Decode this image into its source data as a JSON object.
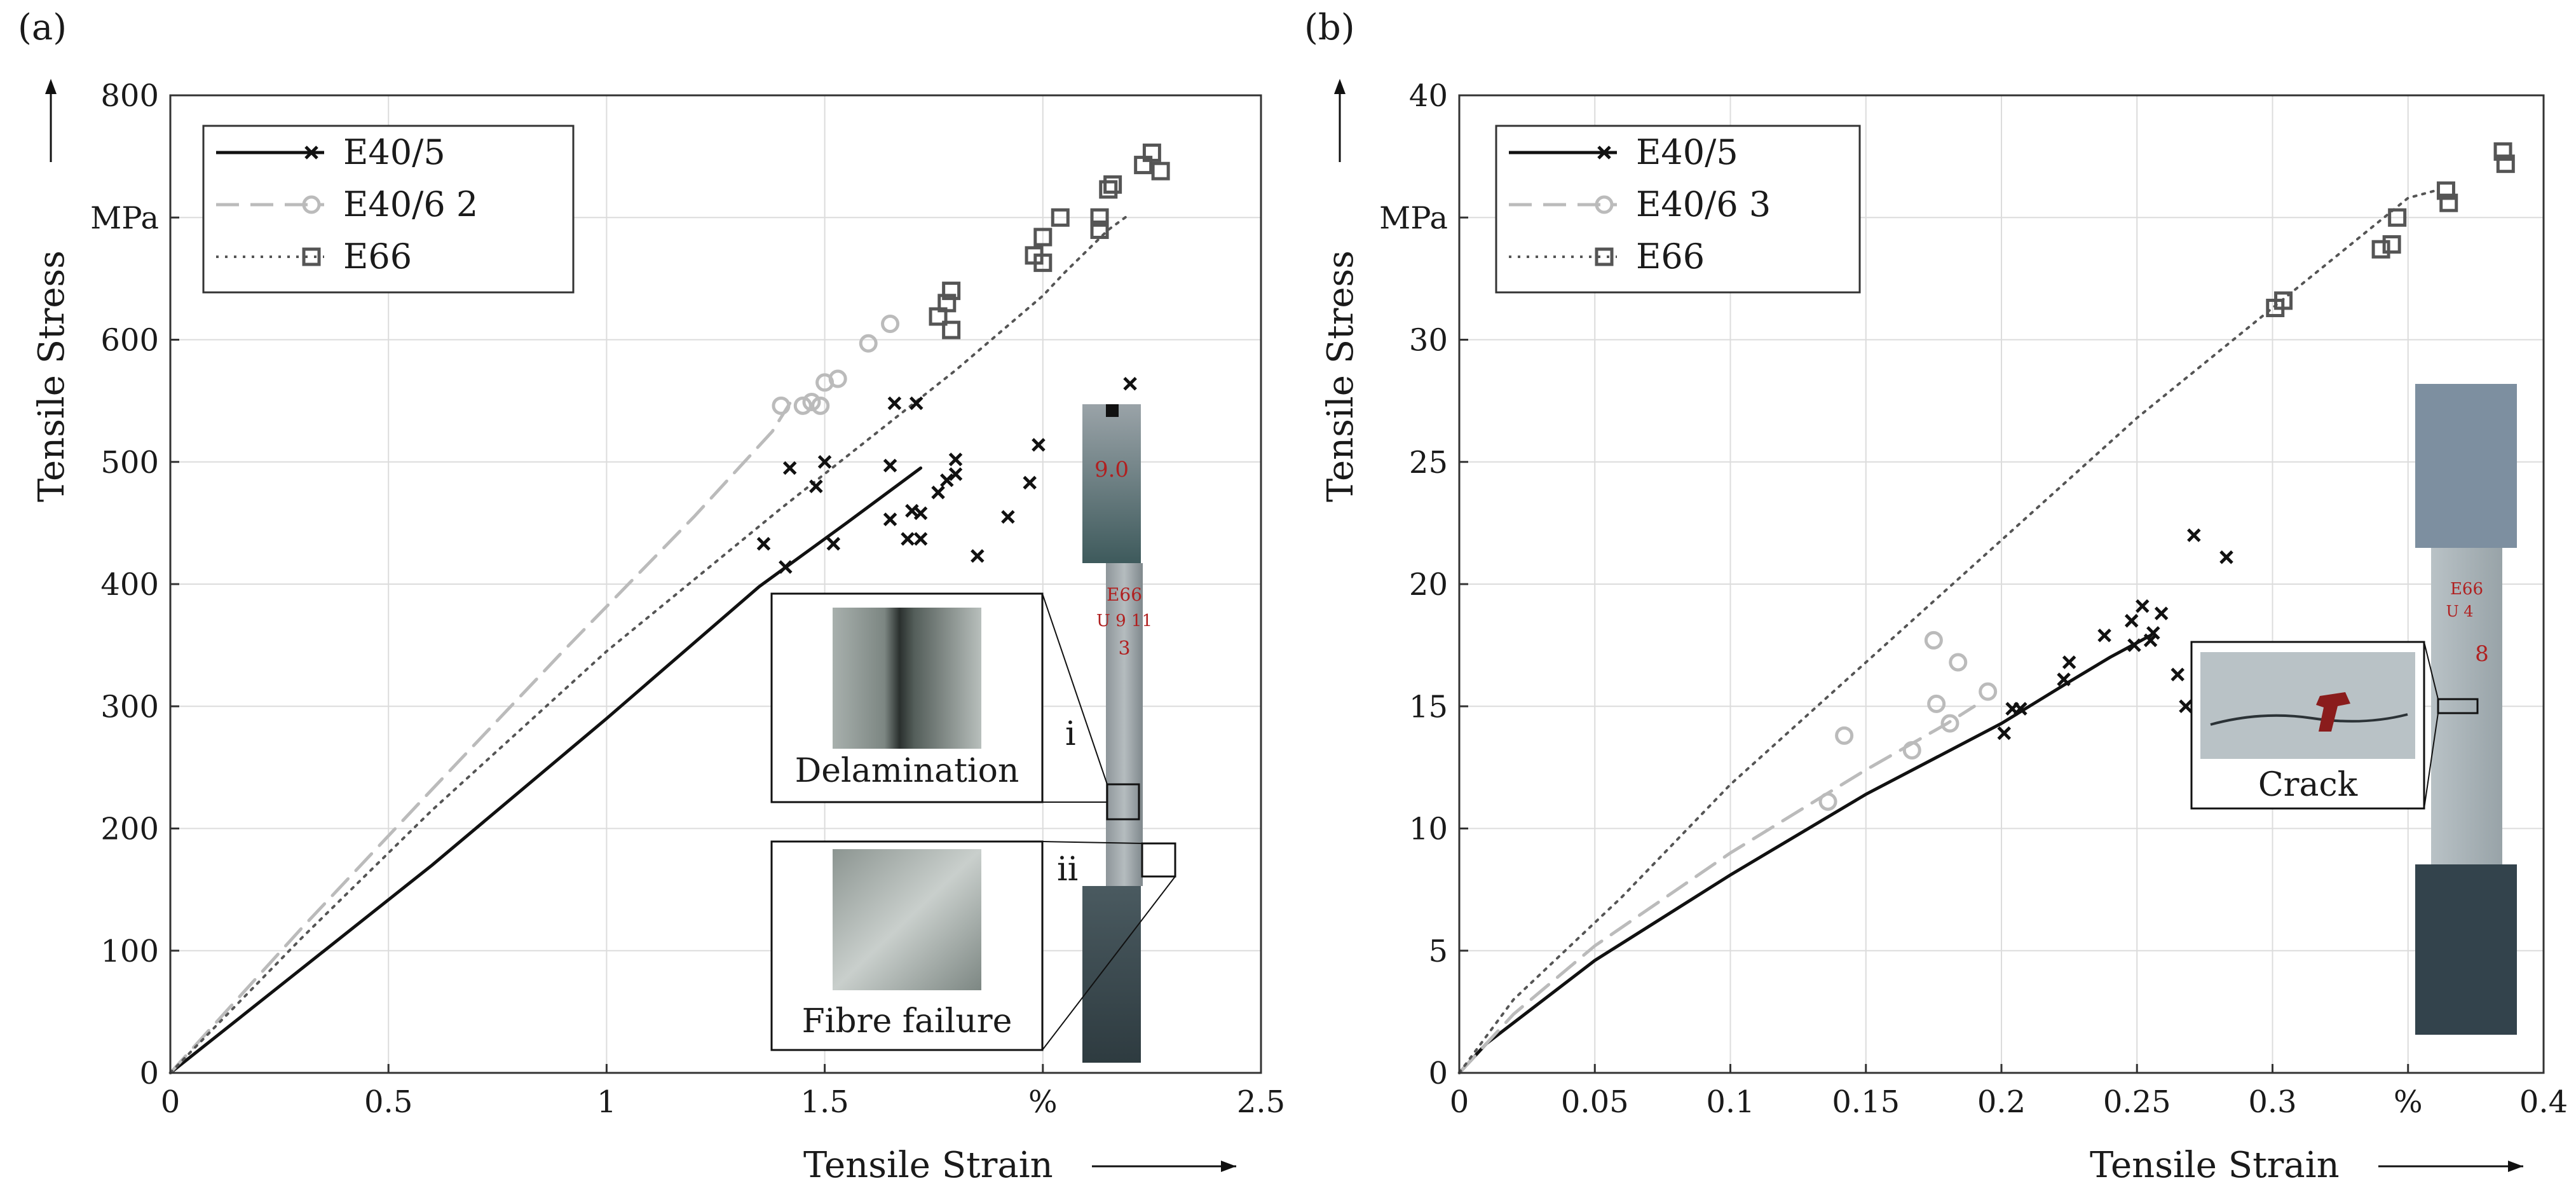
{
  "panels": [
    {
      "id": "a",
      "panel_label": "(a)",
      "inset_labels": {
        "upper": "Delamination",
        "lower": "Fibre failure",
        "marker_i": "i",
        "marker_ii": "ii"
      },
      "specimen_text": [
        "9.0",
        "E66",
        "U 9 11",
        "3"
      ],
      "chart_data": {
        "type": "scatter",
        "title": "",
        "xlabel": "Tensile Strain",
        "ylabel": "Tensile Stress",
        "xunit": "%",
        "yunit": "MPa",
        "xlim": [
          0,
          2.5
        ],
        "ylim": [
          0,
          800
        ],
        "xticks": [
          0,
          0.5,
          1,
          1.5,
          2,
          2.5
        ],
        "xtick_labels": [
          "0",
          "0.5",
          "1",
          "1.5",
          "%",
          "2.5"
        ],
        "yticks": [
          0,
          100,
          200,
          300,
          400,
          500,
          600,
          700,
          800
        ],
        "ytick_labels": [
          "0",
          "100",
          "200",
          "300",
          "400",
          "500",
          "600",
          "MPa",
          "800"
        ],
        "grid": true,
        "legend_position": "top-left",
        "series": [
          {
            "name": "E40/5",
            "style": "solid",
            "marker": "x",
            "color": "#111111",
            "line": [
              [
                0,
                0
              ],
              [
                0.3,
                85
              ],
              [
                0.6,
                170
              ],
              [
                1.0,
                290
              ],
              [
                1.35,
                398
              ],
              [
                1.55,
                450
              ],
              [
                1.72,
                495
              ]
            ],
            "points": [
              [
                1.36,
                433
              ],
              [
                1.41,
                414
              ],
              [
                1.42,
                495
              ],
              [
                1.48,
                480
              ],
              [
                1.5,
                500
              ],
              [
                1.52,
                433
              ],
              [
                1.65,
                453
              ],
              [
                1.65,
                497
              ],
              [
                1.66,
                548
              ],
              [
                1.69,
                437
              ],
              [
                1.7,
                460
              ],
              [
                1.71,
                548
              ],
              [
                1.72,
                437
              ],
              [
                1.72,
                458
              ],
              [
                1.76,
                475
              ],
              [
                1.78,
                485
              ],
              [
                1.8,
                490
              ],
              [
                1.8,
                502
              ],
              [
                1.85,
                423
              ],
              [
                1.92,
                455
              ],
              [
                1.97,
                483
              ],
              [
                1.99,
                514
              ],
              [
                2.2,
                564
              ]
            ]
          },
          {
            "name": "E40/6 2",
            "style": "dashed",
            "marker": "o",
            "color": "#bbbbbb",
            "line": [
              [
                0,
                0
              ],
              [
                0.3,
                118
              ],
              [
                0.6,
                232
              ],
              [
                0.9,
                345
              ],
              [
                1.2,
                455
              ],
              [
                1.38,
                525
              ],
              [
                1.42,
                548
              ]
            ],
            "points": [
              [
                1.4,
                546
              ],
              [
                1.45,
                546
              ],
              [
                1.47,
                549
              ],
              [
                1.49,
                546
              ],
              [
                1.5,
                565
              ],
              [
                1.53,
                568
              ],
              [
                1.6,
                597
              ],
              [
                1.65,
                613
              ]
            ]
          },
          {
            "name": "E66",
            "style": "dotted",
            "marker": "s",
            "color": "#555555",
            "line": [
              [
                0,
                0
              ],
              [
                0.3,
                110
              ],
              [
                0.6,
                215
              ],
              [
                1.0,
                345
              ],
              [
                1.4,
                462
              ],
              [
                1.8,
                575
              ],
              [
                2.0,
                636
              ],
              [
                2.05,
                655
              ],
              [
                2.15,
                690
              ],
              [
                2.2,
                703
              ]
            ],
            "points": [
              [
                1.76,
                619
              ],
              [
                1.78,
                630
              ],
              [
                1.79,
                640
              ],
              [
                1.79,
                608
              ],
              [
                1.98,
                669
              ],
              [
                2.0,
                663
              ],
              [
                2.0,
                684
              ],
              [
                2.04,
                700
              ],
              [
                2.13,
                700
              ],
              [
                2.13,
                690
              ],
              [
                2.15,
                723
              ],
              [
                2.16,
                727
              ],
              [
                2.23,
                743
              ],
              [
                2.25,
                753
              ],
              [
                2.27,
                738
              ]
            ]
          }
        ]
      }
    },
    {
      "id": "b",
      "panel_label": "(b)",
      "inset_labels": {
        "upper": "Crack"
      },
      "specimen_text": [
        "E66",
        "U 4",
        "8"
      ],
      "chart_data": {
        "type": "scatter",
        "title": "",
        "xlabel": "Tensile Strain",
        "ylabel": "Tensile Stress",
        "xunit": "%",
        "yunit": "MPa",
        "xlim": [
          0,
          0.4
        ],
        "ylim": [
          0,
          40
        ],
        "xticks": [
          0,
          0.05,
          0.1,
          0.15,
          0.2,
          0.25,
          0.3,
          0.35,
          0.4
        ],
        "xtick_labels": [
          "0",
          "0.05",
          "0.1",
          "0.15",
          "0.2",
          "0.25",
          "0.3",
          "%",
          "0.4"
        ],
        "yticks": [
          0,
          5,
          10,
          15,
          20,
          25,
          30,
          35,
          40
        ],
        "ytick_labels": [
          "0",
          "5",
          "10",
          "15",
          "20",
          "25",
          "30",
          "MPa",
          "40"
        ],
        "grid": true,
        "legend_position": "top-left",
        "series": [
          {
            "name": "E40/5",
            "style": "solid",
            "marker": "x",
            "color": "#111111",
            "line": [
              [
                0,
                0
              ],
              [
                0.01,
                1.2
              ],
              [
                0.05,
                4.6
              ],
              [
                0.1,
                8.1
              ],
              [
                0.15,
                11.4
              ],
              [
                0.2,
                14.3
              ],
              [
                0.225,
                16
              ],
              [
                0.24,
                17
              ],
              [
                0.25,
                17.6
              ],
              [
                0.255,
                17.9
              ]
            ],
            "points": [
              [
                0.201,
                13.9
              ],
              [
                0.204,
                14.9
              ],
              [
                0.207,
                14.9
              ],
              [
                0.223,
                16.1
              ],
              [
                0.225,
                16.8
              ],
              [
                0.238,
                17.9
              ],
              [
                0.248,
                18.5
              ],
              [
                0.249,
                17.5
              ],
              [
                0.252,
                19.1
              ],
              [
                0.255,
                17.7
              ],
              [
                0.256,
                18
              ],
              [
                0.259,
                18.8
              ],
              [
                0.265,
                16.3
              ],
              [
                0.268,
                15
              ],
              [
                0.271,
                22
              ],
              [
                0.283,
                21.1
              ]
            ]
          },
          {
            "name": "E40/6 3",
            "style": "dashed",
            "marker": "o",
            "color": "#bbbbbb",
            "line": [
              [
                0,
                0
              ],
              [
                0.02,
                2.4
              ],
              [
                0.05,
                5.2
              ],
              [
                0.1,
                9
              ],
              [
                0.15,
                12.4
              ],
              [
                0.18,
                14.3
              ],
              [
                0.19,
                15
              ]
            ],
            "points": [
              [
                0.136,
                11.1
              ],
              [
                0.142,
                13.8
              ],
              [
                0.167,
                13.2
              ],
              [
                0.175,
                17.7
              ],
              [
                0.176,
                15.1
              ],
              [
                0.181,
                14.3
              ],
              [
                0.184,
                16.8
              ],
              [
                0.195,
                15.6
              ]
            ]
          },
          {
            "name": "E66",
            "style": "dotted",
            "marker": "s",
            "color": "#555555",
            "line": [
              [
                0,
                0
              ],
              [
                0.02,
                3
              ],
              [
                0.06,
                7.2
              ],
              [
                0.1,
                11.8
              ],
              [
                0.15,
                16.8
              ],
              [
                0.2,
                21.8
              ],
              [
                0.25,
                26.8
              ],
              [
                0.3,
                31.3
              ],
              [
                0.35,
                35.8
              ],
              [
                0.36,
                36.1
              ]
            ],
            "points": [
              [
                0.301,
                31.3
              ],
              [
                0.304,
                31.6
              ],
              [
                0.34,
                33.7
              ],
              [
                0.344,
                33.9
              ],
              [
                0.346,
                35
              ],
              [
                0.364,
                36.1
              ],
              [
                0.365,
                35.6
              ],
              [
                0.385,
                37.7
              ],
              [
                0.386,
                37.2
              ]
            ]
          }
        ]
      }
    }
  ]
}
